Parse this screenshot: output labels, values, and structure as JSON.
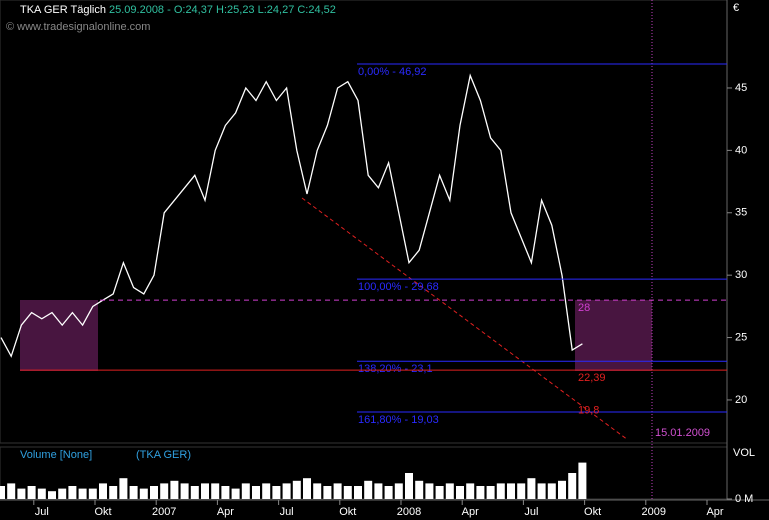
{
  "chart_data": [
    {
      "type": "line",
      "title": "TKA GER Täglich",
      "subtitle": "25.09.2008 - O:24,37 H:25,23 L:24,27 C:24,52",
      "source": "© www.tradesignalonline.com",
      "y_axis_label": "€",
      "categories": [
        null,
        null,
        null,
        null,
        "Jul",
        null,
        null,
        null,
        null,
        null,
        "Okt",
        null,
        null,
        null,
        null,
        null,
        "2007",
        null,
        null,
        null,
        null,
        null,
        "Apr",
        null,
        null,
        null,
        null,
        null,
        "Jul",
        null,
        null,
        null,
        null,
        null,
        "Okt",
        null,
        null,
        null,
        null,
        null,
        "2008",
        null,
        null,
        null,
        null,
        null,
        "Apr",
        null,
        null,
        null,
        null,
        null,
        "Jul",
        null,
        null,
        null,
        null,
        null,
        "Okt",
        null,
        null,
        null,
        null,
        null,
        "2009",
        null,
        null,
        null,
        null,
        null,
        "Apr",
        null
      ],
      "series": [
        {
          "color": "#ffffff",
          "values": [
            25,
            23.5,
            26,
            27,
            26.5,
            27,
            26,
            27,
            26,
            27.5,
            28,
            28.5,
            31,
            29,
            28.5,
            30,
            35,
            36,
            37,
            38,
            36,
            40,
            42,
            43,
            45,
            44,
            45.5,
            44,
            45,
            40,
            36.5,
            40,
            42,
            45,
            45.5,
            44,
            38,
            37,
            39,
            35,
            31,
            32,
            35,
            38,
            36,
            42,
            46,
            44,
            41,
            40,
            35,
            33,
            31,
            36,
            34,
            30,
            24,
            24.5,
            null,
            null,
            null,
            null,
            null,
            null,
            null,
            null,
            null,
            null,
            null,
            null,
            null,
            null
          ]
        }
      ],
      "ylim": [
        16.55,
        52.05
      ],
      "yticks": [
        20,
        25,
        30,
        35,
        40,
        45
      ],
      "levels": [
        {
          "value": 46.92,
          "label": "0,00% - 46,92"
        },
        {
          "value": 29.68,
          "label": "100,00% - 29,68"
        },
        {
          "value": 23.1,
          "label": "138,20% - 23,1"
        },
        {
          "value": 19.03,
          "label": "161,80% - 19,03"
        }
      ],
      "annotations": [
        {
          "value": 28,
          "label": "28"
        },
        {
          "value": 22.39,
          "label": "22,39"
        },
        {
          "value": 19.8,
          "label": "19,8"
        }
      ],
      "date_marker": "15.01.2009"
    },
    {
      "type": "bar",
      "title": "Volume [None]",
      "subtitle": "(TKA GER)",
      "y_axis_label": "VOL",
      "color": "#ffffff",
      "values": [
        2.5,
        3,
        2,
        2.5,
        2,
        1.5,
        2,
        2.5,
        2,
        2,
        3,
        2.5,
        4,
        2.5,
        2,
        2.5,
        3,
        3.5,
        3,
        2.5,
        3,
        3,
        2.5,
        2,
        3,
        2.5,
        3,
        2.5,
        3,
        3.5,
        4,
        3,
        2.5,
        3,
        2.5,
        2.5,
        3.5,
        3,
        2.5,
        3,
        5,
        3.5,
        3,
        2.5,
        3,
        2.5,
        3,
        2.5,
        2.5,
        3,
        3,
        3,
        4,
        3,
        3,
        3.5,
        5,
        7,
        null,
        null,
        null,
        null,
        null,
        null,
        null,
        null,
        null,
        null,
        null,
        null,
        null,
        null
      ],
      "ylim": [
        0,
        10
      ],
      "yticks": [
        {
          "value": 0,
          "label": "0 M"
        }
      ]
    }
  ]
}
